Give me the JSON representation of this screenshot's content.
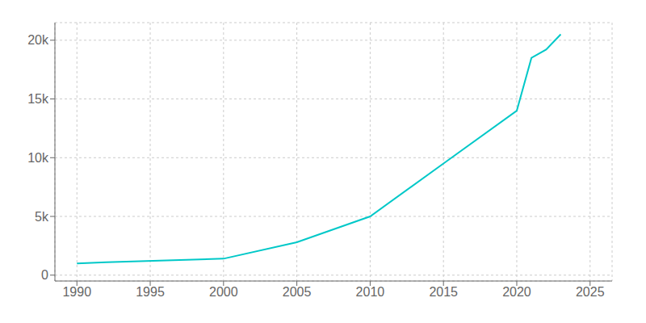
{
  "chart_data": {
    "type": "line",
    "x": [
      1990,
      1992,
      2000,
      2005,
      2010,
      2015,
      2020,
      2021,
      2022,
      2023
    ],
    "values": [
      1000,
      1100,
      1400,
      2800,
      5000,
      9500,
      14000,
      18500,
      19200,
      20500
    ],
    "color": "#00c8c8",
    "xlim": [
      1988.5,
      2026.5
    ],
    "ylim": [
      -500,
      21500
    ],
    "xticks": [
      1990,
      1995,
      2000,
      2005,
      2010,
      2015,
      2020,
      2025
    ],
    "yticks": [
      0,
      {
        "value": 5000,
        "label": "5k"
      },
      {
        "value": 10000,
        "label": "10k"
      },
      {
        "value": 15000,
        "label": "15k"
      },
      {
        "value": 20000,
        "label": "20k"
      }
    ],
    "grid": true
  }
}
